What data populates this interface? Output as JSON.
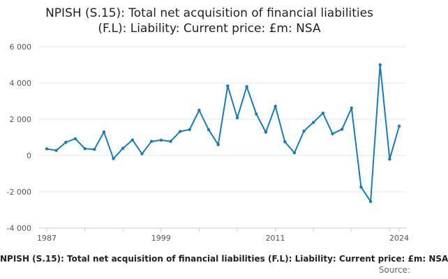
{
  "title_line1": "NPISH (S.15): Total net acquisition of financial liabilities",
  "title_line2": "(F.L): Liability: Current price: £m: NSA",
  "bottom_caption": "NPISH (S.15): Total net acquisition of financial liabilities (F.L): Liability: Current price: £m: NSA",
  "source_label": "Source:",
  "series_color": "#1a7ab8",
  "chart_data": {
    "type": "line",
    "title": "NPISH (S.15): Total net acquisition of financial liabilities (F.L): Liability: Current price: £m: NSA",
    "xlabel": "",
    "ylabel": "",
    "ylim": [
      -4000,
      6000
    ],
    "xlim": [
      1987,
      2024
    ],
    "grid": true,
    "y_ticks": [
      -4000,
      -2000,
      0,
      2000,
      4000,
      6000
    ],
    "y_tick_labels": [
      "-4 000",
      "-2 000",
      "0",
      "2 000",
      "4 000",
      "6 000"
    ],
    "x_tick_labels": [
      "1987",
      "1999",
      "2011",
      "2024"
    ],
    "x_tick_values": [
      1987,
      1999,
      2011,
      2024
    ],
    "x": [
      1987,
      1988,
      1989,
      1990,
      1991,
      1992,
      1993,
      1994,
      1995,
      1996,
      1997,
      1998,
      1999,
      2000,
      2001,
      2002,
      2003,
      2004,
      2005,
      2006,
      2007,
      2008,
      2009,
      2010,
      2011,
      2012,
      2013,
      2014,
      2015,
      2016,
      2017,
      2018,
      2019,
      2020,
      2021,
      2022,
      2023,
      2024
    ],
    "series": [
      {
        "values": [
          370,
          280,
          730,
          930,
          380,
          340,
          1300,
          -170,
          400,
          860,
          100,
          780,
          850,
          780,
          1330,
          1430,
          2500,
          1420,
          600,
          3840,
          2080,
          3800,
          2290,
          1290,
          2720,
          760,
          150,
          1350,
          1830,
          2340,
          1200,
          1450,
          2620,
          -1740,
          -2530,
          5000,
          -200,
          1620
        ]
      }
    ]
  }
}
